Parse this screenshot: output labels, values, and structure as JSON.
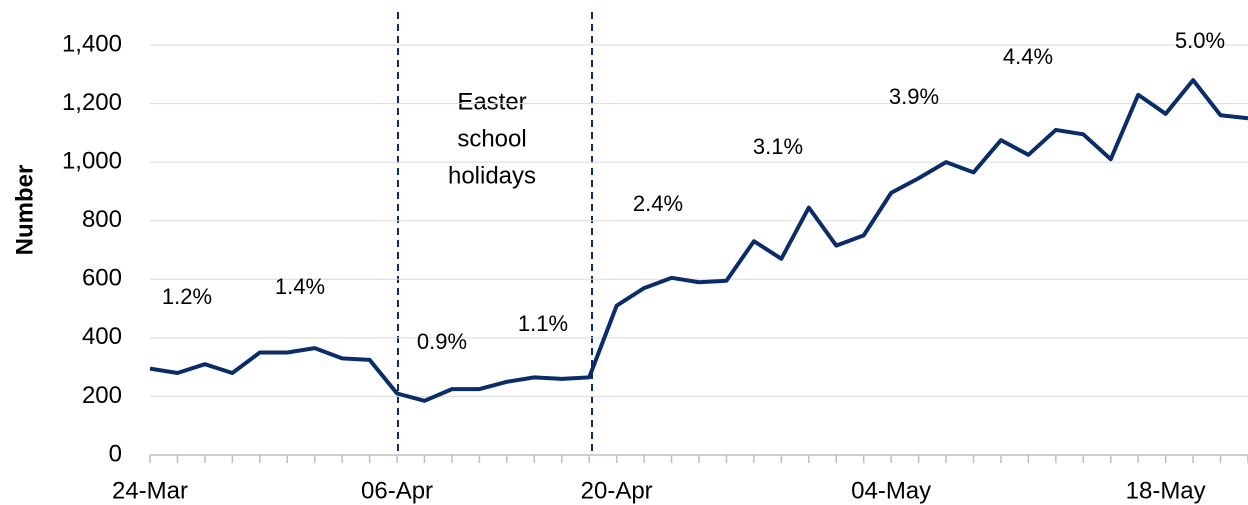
{
  "chart_data": {
    "type": "line",
    "y_label": "Number",
    "annotation": [
      "Easter",
      "school",
      "holidays"
    ],
    "point_labels": [
      "1.2%",
      "1.4%",
      "0.9%",
      "1.1%",
      "2.4%",
      "3.1%",
      "3.9%",
      "4.4%",
      "5.0%"
    ],
    "categories": [
      "24-Mar",
      null,
      null,
      null,
      null,
      null,
      null,
      null,
      null,
      "06-Apr",
      null,
      null,
      null,
      null,
      null,
      null,
      null,
      "20-Apr",
      null,
      null,
      null,
      null,
      null,
      null,
      null,
      null,
      null,
      "04-May",
      null,
      null,
      null,
      null,
      null,
      null,
      null,
      null,
      null,
      "18-May",
      null,
      null,
      null
    ],
    "series": [
      {
        "name": "Number",
        "color": "#0a2d69",
        "values": [
          295,
          280,
          310,
          280,
          350,
          350,
          365,
          330,
          325,
          210,
          185,
          225,
          225,
          250,
          265,
          260,
          265,
          510,
          570,
          605,
          590,
          595,
          730,
          670,
          845,
          715,
          750,
          895,
          945,
          1000,
          965,
          1075,
          1025,
          1110,
          1095,
          1010,
          1230,
          1165,
          1280,
          1160,
          1150
        ]
      }
    ],
    "ylim": [
      0,
      1400
    ],
    "yticks": [
      0,
      200,
      400,
      600,
      800,
      {
        "value": 1000,
        "label": "1,000"
      },
      {
        "value": 1200,
        "label": "1,200"
      },
      {
        "value": 1400,
        "label": "1,400"
      }
    ],
    "grid": true
  }
}
